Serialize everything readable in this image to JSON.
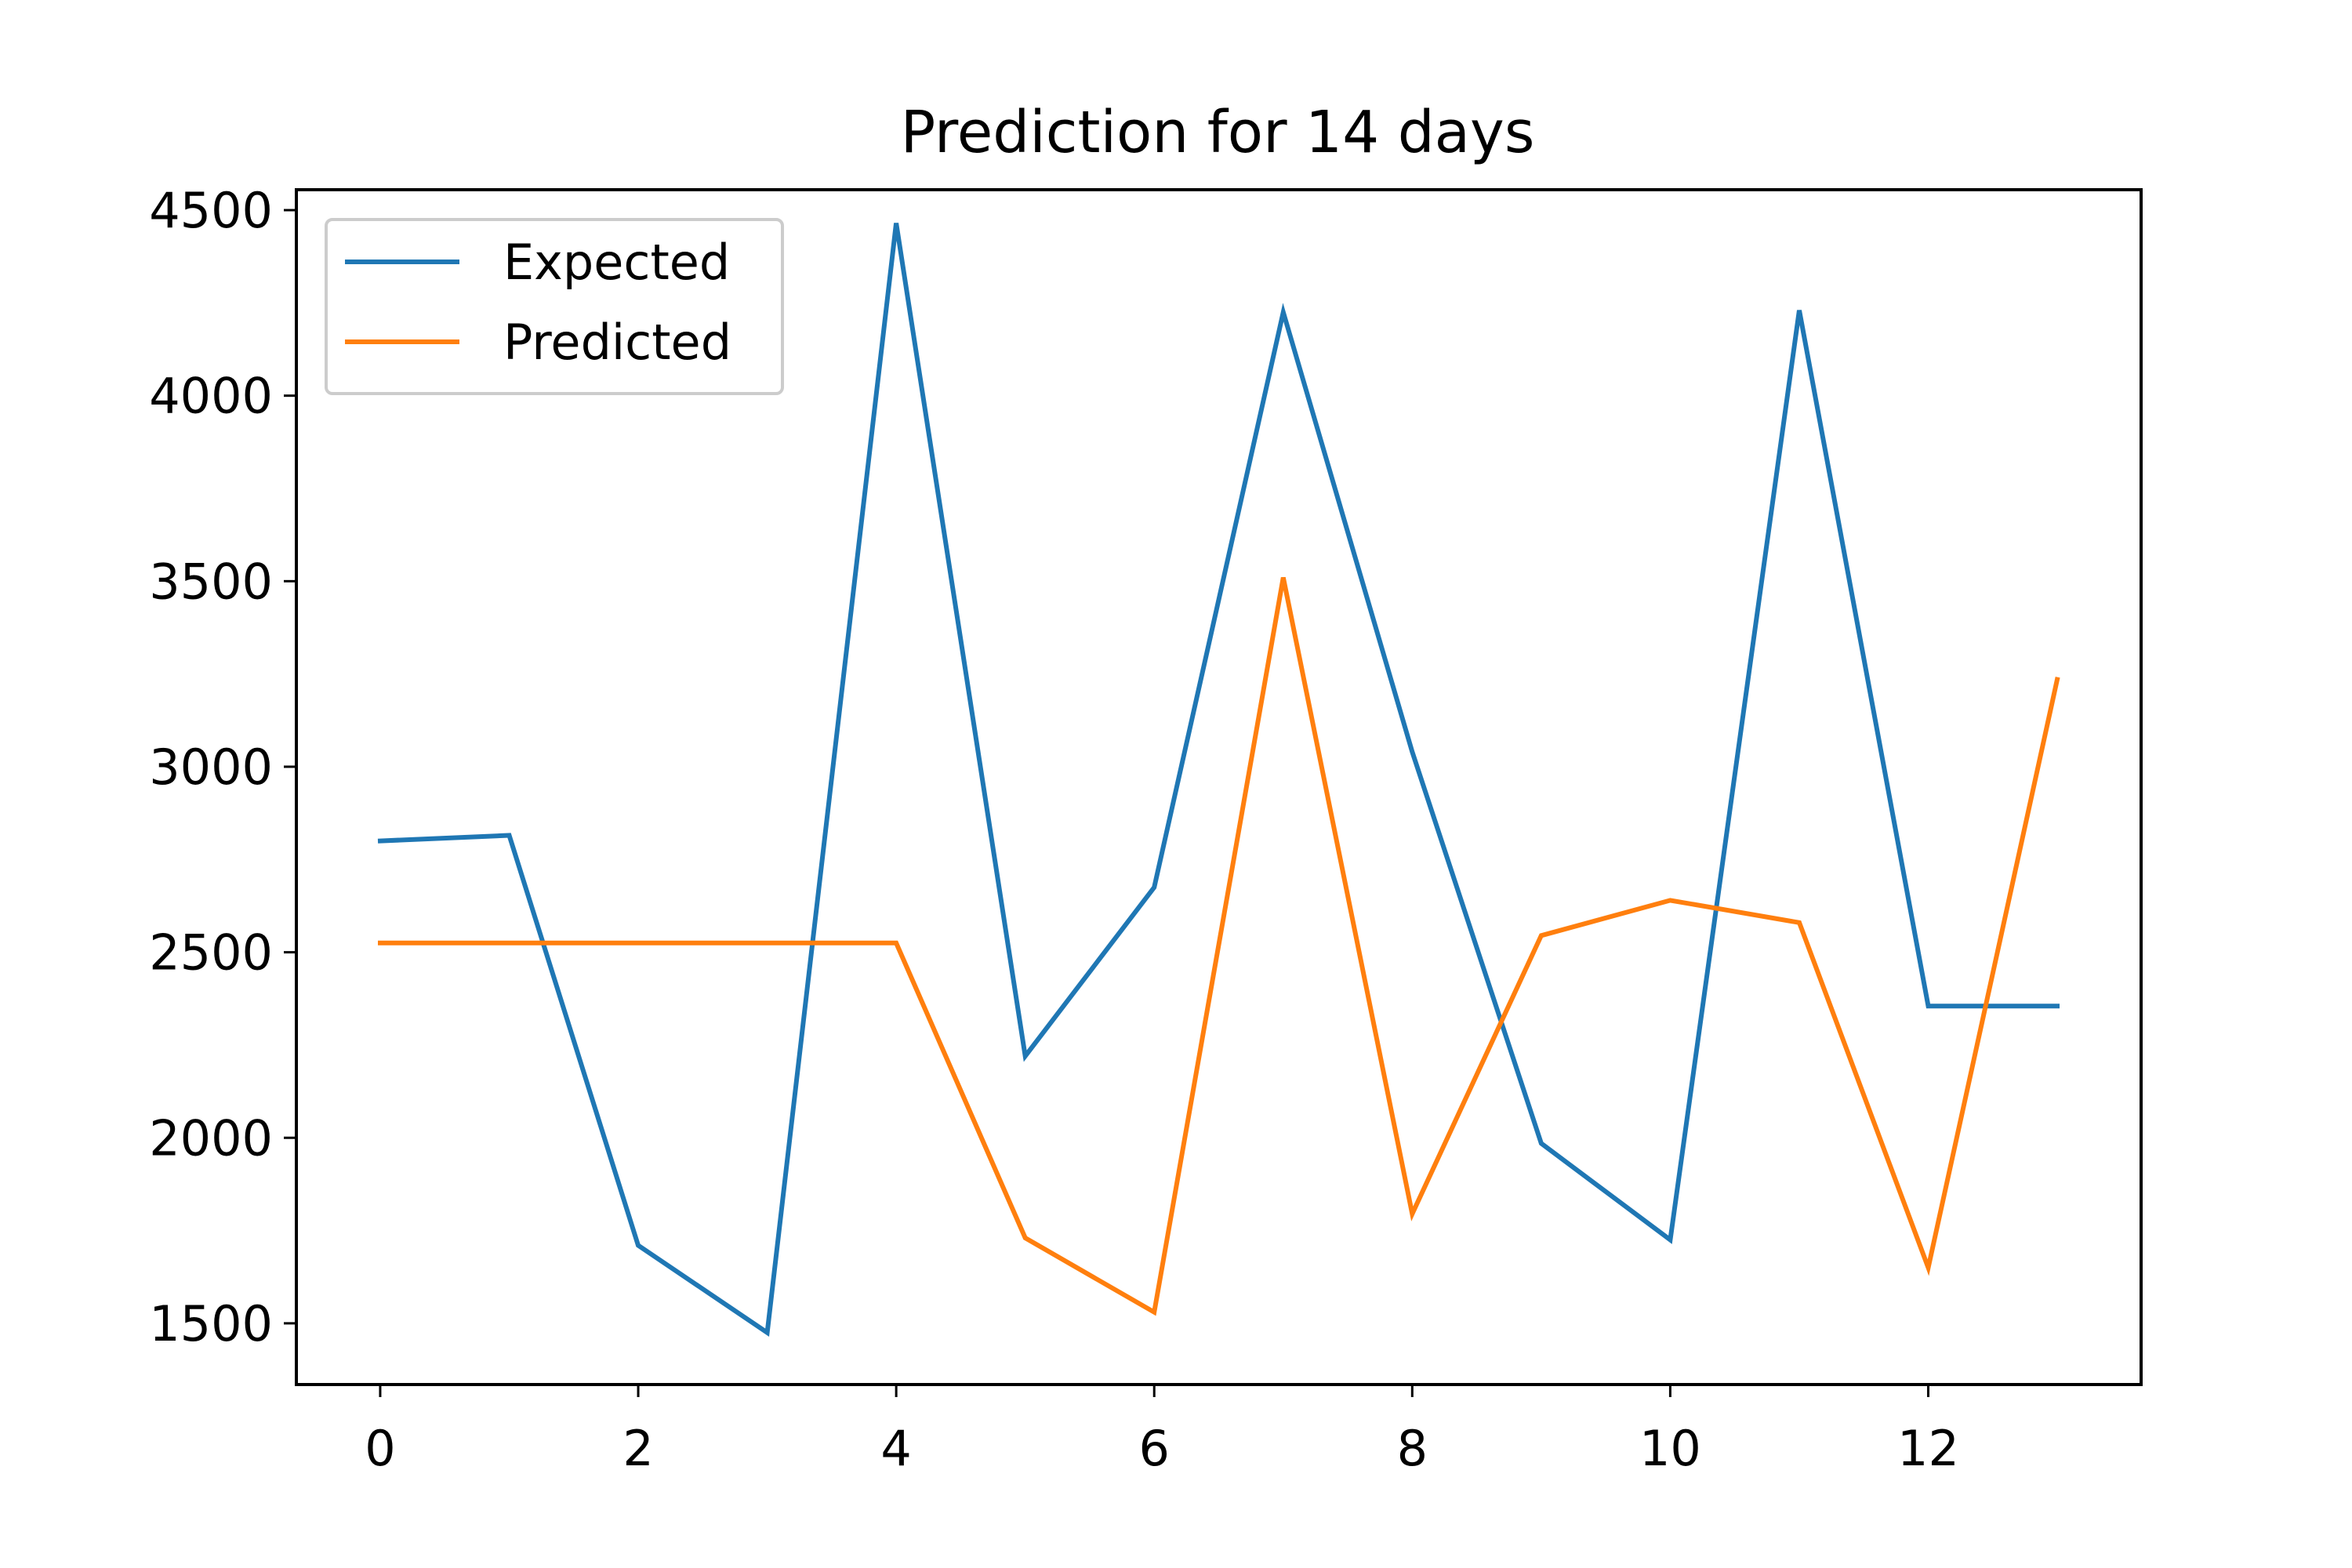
{
  "chart_data": {
    "type": "line",
    "title": "Prediction for 14 days",
    "xlabel": "",
    "ylabel": "",
    "x": [
      0,
      1,
      2,
      3,
      4,
      5,
      6,
      7,
      8,
      9,
      10,
      11,
      12,
      13
    ],
    "xlim": [
      -0.65,
      13.65
    ],
    "ylim": [
      1335,
      4555
    ],
    "x_ticks": [
      0,
      2,
      4,
      6,
      8,
      10,
      12
    ],
    "y_ticks": [
      1500,
      2000,
      2500,
      3000,
      3500,
      4000,
      4500
    ],
    "grid": false,
    "legend_position": "top-left",
    "series": [
      {
        "name": "Expected",
        "color": "#1f77b4",
        "values": [
          2800,
          2815,
          1710,
          1475,
          4465,
          2220,
          2675,
          4225,
          3040,
          1985,
          1725,
          4230,
          2355,
          2355
        ]
      },
      {
        "name": "Predicted",
        "color": "#ff7f0e",
        "values": [
          2525,
          2525,
          2525,
          2525,
          2525,
          1730,
          1530,
          3510,
          1795,
          2545,
          2640,
          2580,
          1650,
          3235
        ]
      }
    ]
  }
}
